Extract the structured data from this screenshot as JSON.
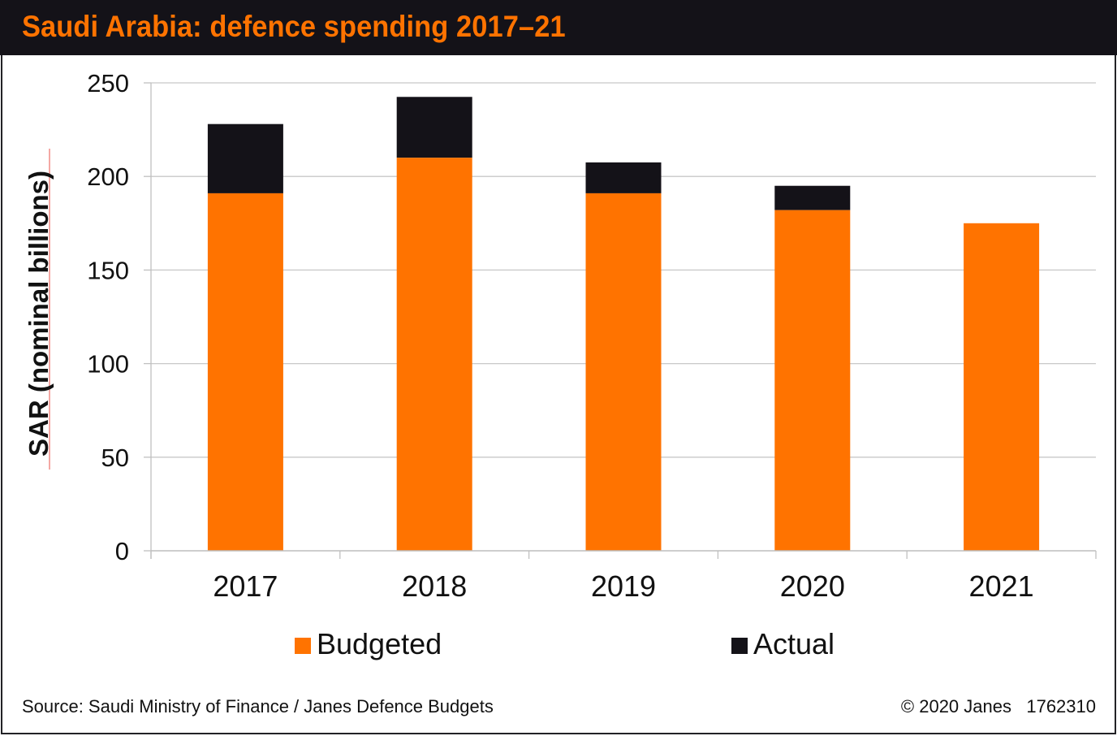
{
  "header": {
    "title": "Saudi Arabia: defence spending 2017–21"
  },
  "chart_data": {
    "type": "bar",
    "stacked": true,
    "title": "Saudi Arabia: defence spending 2017–21",
    "xlabel": "",
    "ylabel": "SAR (nominal billions)",
    "ylim": [
      0,
      250
    ],
    "yticks": [
      0,
      50,
      100,
      150,
      200,
      250
    ],
    "grid": true,
    "categories": [
      "2017",
      "2018",
      "2019",
      "2020",
      "2021"
    ],
    "series": [
      {
        "name": "Budgeted",
        "color": "#ff7300",
        "values": [
          191,
          210,
          191,
          182,
          175
        ]
      },
      {
        "name": "Actual",
        "color": "#141218",
        "values": [
          228,
          242.5,
          207.5,
          195,
          null
        ],
        "note": "Actual shown as total bar height; dark segment is the excess of actual over budgeted"
      }
    ],
    "legend_position": "bottom"
  },
  "legend": {
    "items": [
      {
        "label": "Budgeted",
        "color": "#ff7300"
      },
      {
        "label": "Actual",
        "color": "#141218"
      }
    ]
  },
  "footer": {
    "source": "Source: Saudi Ministry of Finance / Janes Defence Budgets",
    "copyright": "© 2020 Janes",
    "id": "1762310"
  }
}
